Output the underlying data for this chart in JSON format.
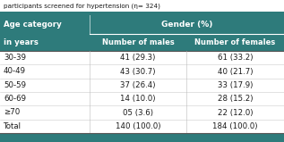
{
  "caption": "participants screened for hypertension (η= 324)",
  "col1_header_line1": "Age category",
  "col1_header_line2": "in years",
  "col2_header": "Number of males",
  "col3_header": "Number of females",
  "gender_header": "Gender (%)",
  "rows": [
    [
      "30-39",
      "41 (29.3)",
      "61 (33.2)"
    ],
    [
      "40-49",
      "43 (30.7)",
      "40 (21.7)"
    ],
    [
      "50-59",
      "37 (26.4)",
      "33 (17.9)"
    ],
    [
      "60-69",
      "14 (10.0)",
      "28 (15.2)"
    ],
    [
      "≥70",
      "05 (3.6)",
      "22 (12.0)"
    ],
    [
      "Total",
      "140 (100.0)",
      "184 (100.0)"
    ]
  ],
  "header_bg": "#2e7b7b",
  "caption_bg": "#ffffff",
  "body_bg": "#ffffff",
  "footer_bg": "#2e7b7b",
  "header_text": "#ffffff",
  "body_text": "#1a1a1a",
  "caption_text": "#1a1a1a",
  "divider_color": "#999999",
  "fig_bg": "#2e7b7b"
}
